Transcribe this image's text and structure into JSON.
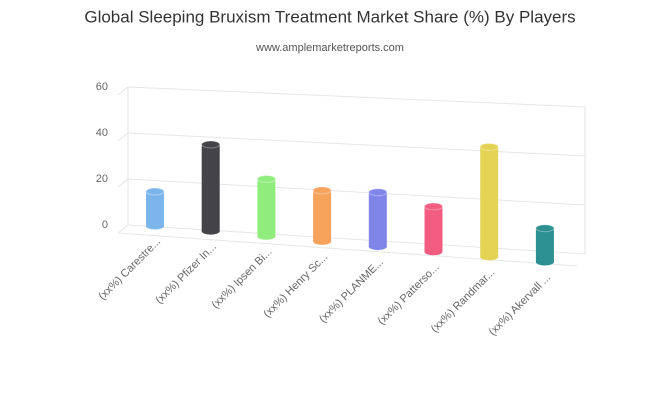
{
  "chart_data": {
    "type": "bar3d",
    "title": "Global Sleeping Bruxism Treatment Market Share (%) By Players",
    "subtitle": "www.amplemarketreports.com",
    "categories": [
      "(xx%) Carestre...",
      "(xx%) Pfizer In...",
      "(xx%) Ipsen Bi...",
      "(xx%) Henry Sc...",
      "(xx%) PLANME...",
      "(xx%) Patterso...",
      "(xx%) Randmar...",
      "(xx%) Akervall ..."
    ],
    "values": [
      15,
      37,
      24,
      21,
      22,
      18,
      43,
      13
    ],
    "colors": [
      "#7cb5ec",
      "#434348",
      "#90ed7d",
      "#f7a35c",
      "#8085e9",
      "#f15c80",
      "#e4d354",
      "#2b908f"
    ],
    "ylim": [
      0,
      60
    ],
    "yticks": [
      0,
      20,
      40,
      60
    ],
    "grid": true
  }
}
